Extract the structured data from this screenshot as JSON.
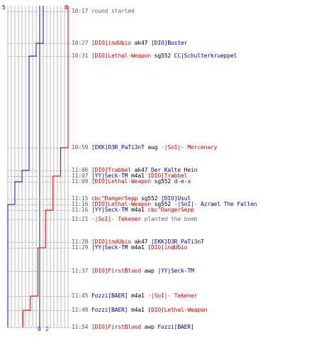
{
  "colors": {
    "team_a": "#cc0000",
    "team_b": "#0000cc",
    "grid": "#bbbbbb",
    "center": "#666666",
    "time": "#555555",
    "note": "#666666"
  },
  "counts": {
    "top_blue": "5",
    "top_red": "8",
    "bottom_blue": "0",
    "bottom_red": "2"
  },
  "events": [
    {
      "time": "10:17",
      "parts": [
        {
          "t": "round started",
          "c": "note"
        }
      ]
    },
    {
      "time": "10:27",
      "parts": [
        {
          "t": "[DIO]indUbio",
          "c": "red"
        },
        {
          "t": " ak47 ",
          "c": "wpn"
        },
        {
          "t": "[DIO]Buster",
          "c": "blue"
        }
      ]
    },
    {
      "time": "10:31",
      "parts": [
        {
          "t": "[DIO]Lethal-Weapon",
          "c": "red"
        },
        {
          "t": " sg552 ",
          "c": "wpn"
        },
        {
          "t": "CC|Schulterkrueppel",
          "c": "blue"
        }
      ]
    },
    {
      "time": "10:59",
      "parts": [
        {
          "t": "[EKK]D3R_PaTi3nT",
          "c": "blue"
        },
        {
          "t": " aug ",
          "c": "wpn"
        },
        {
          "t": "-|SoI|- Mercenary",
          "c": "red"
        }
      ]
    },
    {
      "time": "11:06",
      "parts": [
        {
          "t": "[DIO]Trabbel",
          "c": "red"
        },
        {
          "t": " ak47 ",
          "c": "wpn"
        },
        {
          "t": "Der Kalte Hein",
          "c": "blue"
        }
      ]
    },
    {
      "time": "11:07",
      "parts": [
        {
          "t": "|YY|Seck-TM",
          "c": "blue"
        },
        {
          "t": " m4a1 ",
          "c": "wpn"
        },
        {
          "t": "[DIO]Trabbel",
          "c": "red"
        }
      ]
    },
    {
      "time": "11:09",
      "parts": [
        {
          "t": "[DIO]Lethal-Weapon",
          "c": "red"
        },
        {
          "t": " sg552 ",
          "c": "wpn"
        },
        {
          "t": "d-e-x",
          "c": "blue"
        }
      ]
    },
    {
      "time": "11:15",
      "parts": [
        {
          "t": "cbc^DangerSepp",
          "c": "red"
        },
        {
          "t": " sg552 ",
          "c": "wpn"
        },
        {
          "t": "[DIO]Usul",
          "c": "blue"
        }
      ]
    },
    {
      "time": "11:16",
      "parts": [
        {
          "t": "[DIO]Lethal-Weapon",
          "c": "red"
        },
        {
          "t": " sg552 ",
          "c": "wpn"
        },
        {
          "t": "-|SoI|- Azrael The Fallen",
          "c": "blue"
        }
      ]
    },
    {
      "time": "11:16",
      "parts": [
        {
          "t": "|YY|Seck-TM",
          "c": "blue"
        },
        {
          "t": " m4a1 ",
          "c": "wpn"
        },
        {
          "t": "cbc^DangerSepp",
          "c": "red"
        }
      ]
    },
    {
      "time": "11:21",
      "parts": [
        {
          "t": "-|SoI|- Tekener",
          "c": "red"
        },
        {
          "t": " planted the bomb",
          "c": "note"
        }
      ]
    },
    {
      "time": "11:28",
      "parts": [
        {
          "t": "[DIO]indUbio",
          "c": "red"
        },
        {
          "t": " ak47 ",
          "c": "wpn"
        },
        {
          "t": "[EKK]D3R_PaTi3nT",
          "c": "blue"
        }
      ]
    },
    {
      "time": "11:29",
      "parts": [
        {
          "t": "|YY|Seck-TM",
          "c": "blue"
        },
        {
          "t": " m4a1 ",
          "c": "wpn"
        },
        {
          "t": "[DIO]indUbio",
          "c": "red"
        }
      ]
    },
    {
      "time": "11:37",
      "parts": [
        {
          "t": "[DIO]FirstBlood",
          "c": "red"
        },
        {
          "t": " awp ",
          "c": "wpn"
        },
        {
          "t": "|YY|Seck-TM",
          "c": "blue"
        }
      ]
    },
    {
      "time": "11:45",
      "parts": [
        {
          "t": "Fozzi[BAER]",
          "c": "blue"
        },
        {
          "t": " m4a1 ",
          "c": "wpn"
        },
        {
          "t": "-|SoI|- Tekener",
          "c": "red"
        }
      ]
    },
    {
      "time": "11:49",
      "parts": [
        {
          "t": "Fozzi[BAER]",
          "c": "blue"
        },
        {
          "t": " m4a1 ",
          "c": "wpn"
        },
        {
          "t": "[DIO]Lethal-Weapon",
          "c": "red"
        }
      ]
    },
    {
      "time": "11:54",
      "parts": [
        {
          "t": "[DIO]FirstBlood",
          "c": "red"
        },
        {
          "t": " awp ",
          "c": "wpn"
        },
        {
          "t": "Fozzi[BAER]",
          "c": "blue"
        }
      ]
    }
  ],
  "alive": {
    "red": [
      8,
      8,
      8,
      8,
      7,
      7,
      6,
      6,
      6,
      6,
      5,
      5,
      5,
      4,
      4,
      3,
      2,
      2
    ],
    "blue": [
      5,
      5,
      4,
      3,
      3,
      2,
      2,
      1,
      1,
      0,
      0,
      0,
      0,
      0,
      0,
      0,
      0,
      0
    ]
  }
}
